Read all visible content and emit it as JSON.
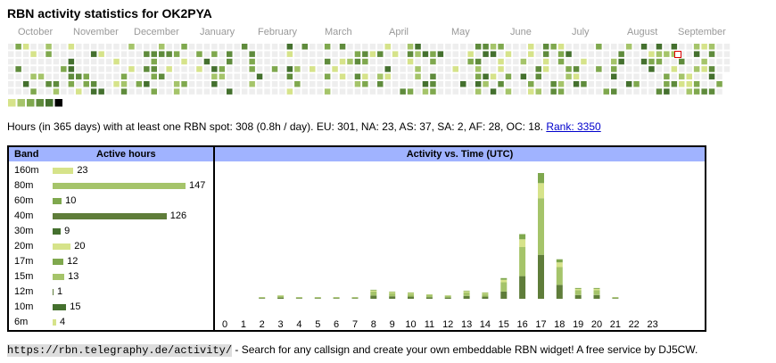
{
  "title": "RBN activity statistics for OK2PYA",
  "months": [
    "October",
    "November",
    "December",
    "January",
    "February",
    "March",
    "April",
    "May",
    "June",
    "July",
    "August",
    "September"
  ],
  "legend_colors": [
    "#d6e38a",
    "#a5c46a",
    "#7fa84e",
    "#5f8b3c",
    "#44702e",
    "#000000"
  ],
  "summary": {
    "text": "Hours (in 365 days) with at least one RBN spot: 308 (0.8h / day). EU: 301, NA: 23, AS: 37, SA: 2, AF: 28, OC: 18.",
    "rank_link": "Rank: 3350"
  },
  "band_table": {
    "header_band": "Band",
    "header_hours": "Active hours",
    "rows": [
      {
        "band": "160m",
        "hours": 23,
        "color": "#d6e38a"
      },
      {
        "band": "80m",
        "hours": 147,
        "color": "#a5c46a"
      },
      {
        "band": "60m",
        "hours": 10,
        "color": "#7fa84e"
      },
      {
        "band": "40m",
        "hours": 126,
        "color": "#5f7d3a"
      },
      {
        "band": "30m",
        "hours": 9,
        "color": "#44702e"
      },
      {
        "band": "20m",
        "hours": 20,
        "color": "#d6e38a"
      },
      {
        "band": "17m",
        "hours": 12,
        "color": "#7fa84e"
      },
      {
        "band": "15m",
        "hours": 13,
        "color": "#a5c46a"
      },
      {
        "band": "12m",
        "hours": 1,
        "color": "#5f7d3a"
      },
      {
        "band": "10m",
        "hours": 15,
        "color": "#44702e"
      },
      {
        "band": "6m",
        "hours": 4,
        "color": "#d6e38a"
      }
    ]
  },
  "chart_data": {
    "type": "bar",
    "title": "Activity vs. Time (UTC)",
    "categories": [
      "0",
      "1",
      "2",
      "3",
      "4",
      "5",
      "6",
      "7",
      "8",
      "9",
      "10",
      "11",
      "12",
      "13",
      "14",
      "15",
      "16",
      "17",
      "18",
      "19",
      "20",
      "21",
      "22",
      "23"
    ],
    "values": [
      0,
      0,
      1,
      4,
      1,
      2,
      1,
      2,
      10,
      8,
      7,
      5,
      4,
      9,
      7,
      23,
      72,
      140,
      44,
      12,
      12,
      2,
      0,
      0
    ]
  },
  "footer": {
    "url": "https://rbn.telegraphy.de/activity/",
    "text": " - Search for any callsign and create your own embeddable RBN widget! A free service by DJ5CW."
  }
}
